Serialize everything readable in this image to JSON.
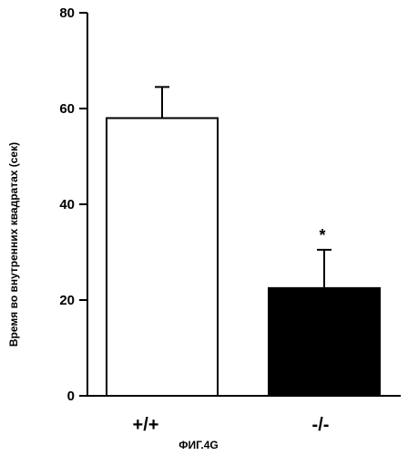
{
  "chart_data": {
    "type": "bar",
    "categories": [
      "+/+",
      "-/-"
    ],
    "values": [
      58,
      22.5
    ],
    "errors": [
      6.5,
      8
    ],
    "bar_colors": [
      "#ffffff",
      "#000000"
    ],
    "ylabel": "Время во внутренних квадратах (сек)",
    "ylim": [
      0,
      80
    ],
    "yticks": [
      0,
      20,
      40,
      60,
      80
    ],
    "annotations": [
      {
        "category": "-/-",
        "text": "*"
      }
    ],
    "caption": "ФИГ.4G",
    "grid": false
  }
}
